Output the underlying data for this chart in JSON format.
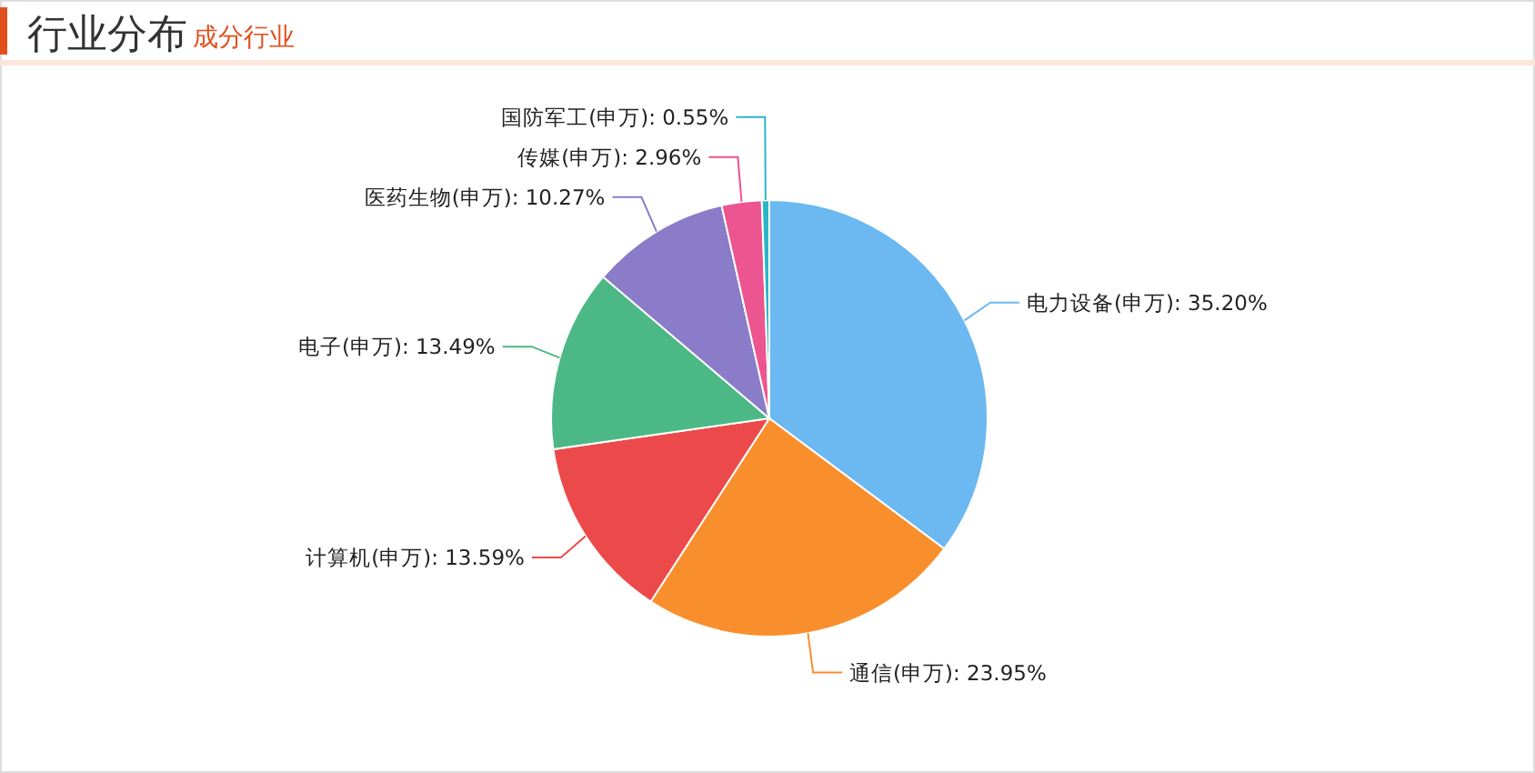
{
  "chart_data": {
    "type": "pie",
    "title": "行业分布",
    "subtitle": "成分行业",
    "categories": [
      "电力设备(申万)",
      "通信(申万)",
      "计算机(申万)",
      "电子(申万)",
      "医药生物(申万)",
      "传媒(申万)",
      "国防军工(申万)"
    ],
    "values": [
      35.2,
      23.95,
      13.59,
      13.49,
      10.27,
      2.96,
      0.55
    ],
    "value_labels": [
      "35.20%",
      "23.95%",
      "13.59%",
      "13.49%",
      "10.27%",
      "2.96%",
      "0.55%"
    ],
    "colors": [
      "#6cb8f0",
      "#f98f2c",
      "#ec4a4a",
      "#4cb886",
      "#8a7cc8",
      "#ec5590",
      "#2bb5c8"
    ],
    "legend": false
  }
}
